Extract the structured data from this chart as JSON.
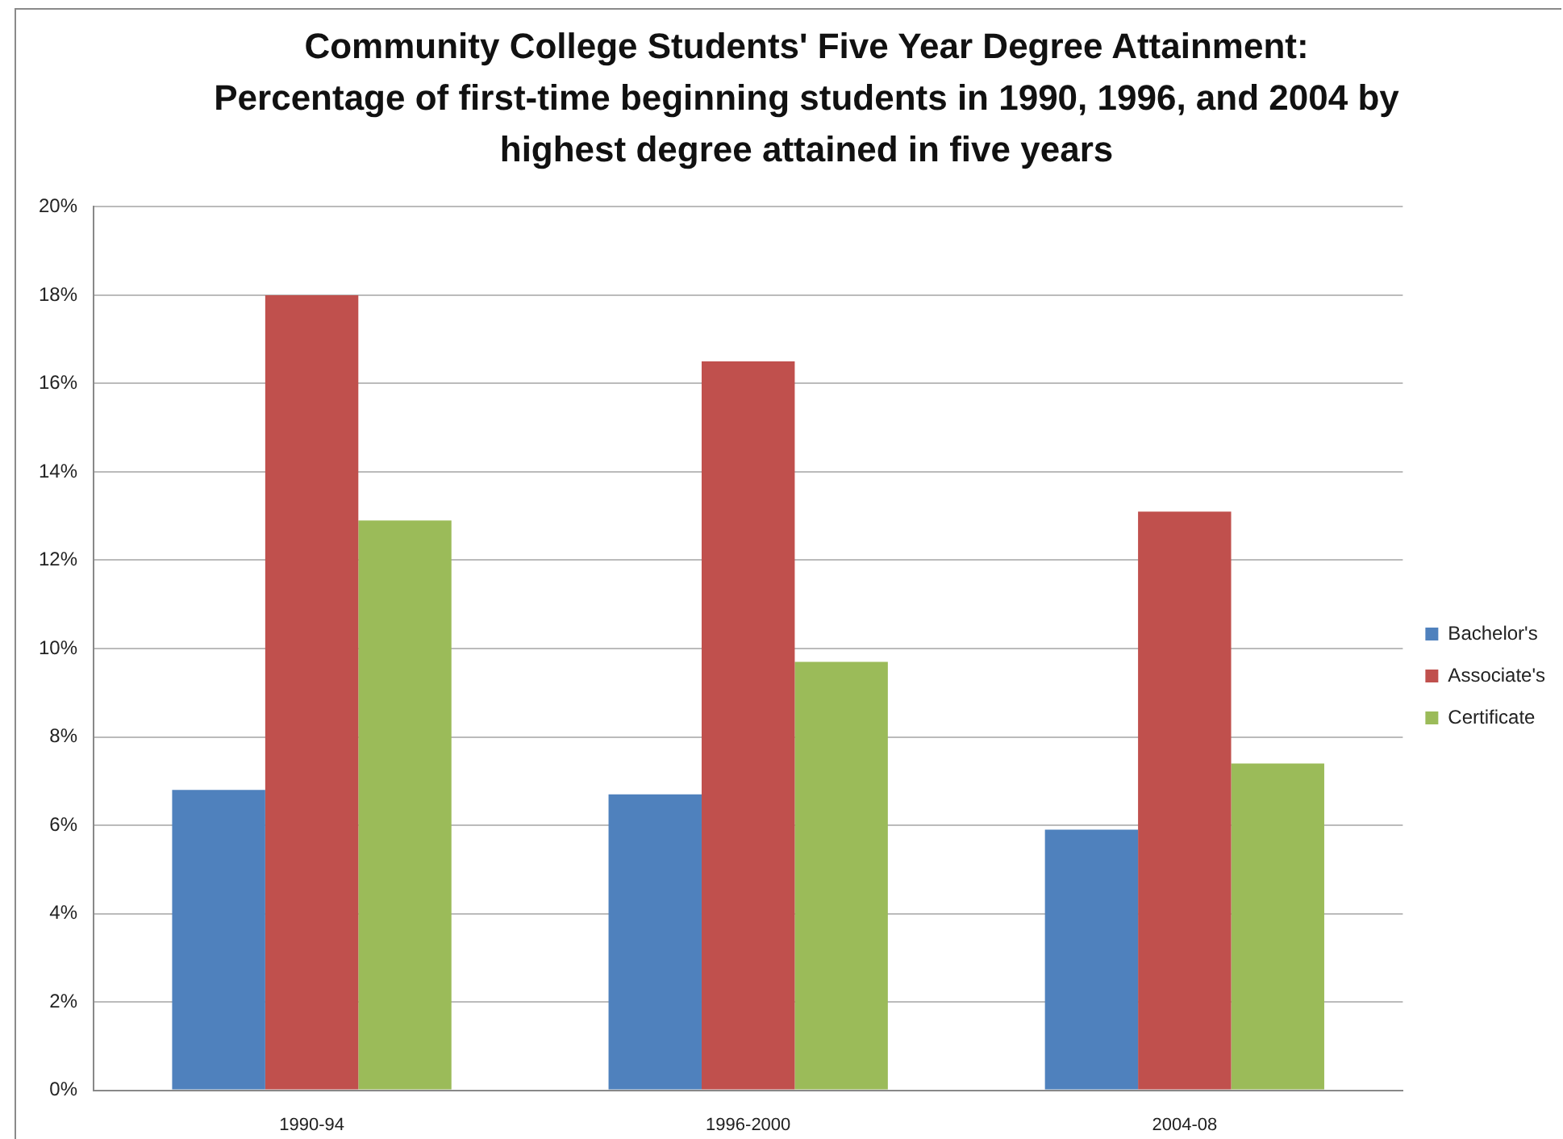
{
  "chart_data": {
    "type": "bar",
    "title": "Community College Students' Five Year Degree Attainment:\nPercentage of first-time beginning students in 1990, 1996, and 2004 by highest degree attained in five years",
    "categories": [
      "1990-94",
      "1996-2000",
      "2004-08"
    ],
    "series": [
      {
        "name": "Bachelor's",
        "color": "#4f81bd",
        "values": [
          6.8,
          6.7,
          5.9
        ]
      },
      {
        "name": "Associate's",
        "color": "#c0504d",
        "values": [
          18,
          16.5,
          13.1
        ]
      },
      {
        "name": "Certificate",
        "color": "#9bbb59",
        "values": [
          12.9,
          9.7,
          7.4
        ]
      }
    ],
    "ylim": [
      0,
      20
    ],
    "yticks": [
      {
        "value": 0,
        "label": "0%"
      },
      {
        "value": 2,
        "label": "2%"
      },
      {
        "value": 4,
        "label": "4%"
      },
      {
        "value": 6,
        "label": "6%"
      },
      {
        "value": 8,
        "label": "8%"
      },
      {
        "value": 10,
        "label": "10%"
      },
      {
        "value": 12,
        "label": "12%"
      },
      {
        "value": 14,
        "label": "14%"
      },
      {
        "value": 16,
        "label": "16%"
      },
      {
        "value": 18,
        "label": "18%"
      },
      {
        "value": 20,
        "label": "20%"
      }
    ],
    "grid": "y",
    "legend": "right"
  }
}
